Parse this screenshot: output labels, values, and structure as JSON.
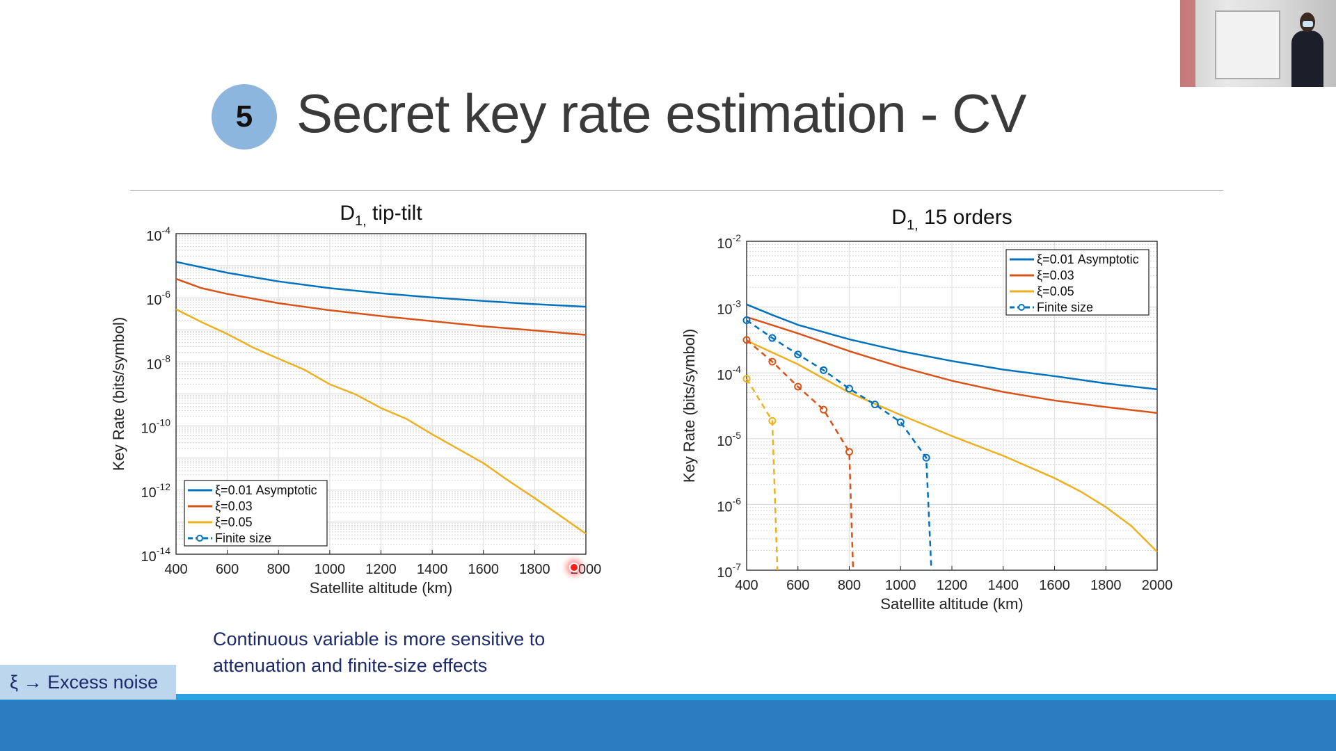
{
  "slide": {
    "number": "5",
    "title": "Secret key rate estimation - CV",
    "note_lines": [
      "Continuous variable is more sensitive to",
      "attenuation and finite-size effects"
    ],
    "xi_label": "ξ → Excess noise",
    "accent_color": "#2c7cc1",
    "circle_color": "#8db6de"
  },
  "webcam": {
    "icon": "presenter-video-thumbnail"
  },
  "chart_data": [
    {
      "type": "line",
      "title": {
        "main": "D",
        "sub": "1,",
        "rest": " tip-tilt"
      },
      "xlabel": "Satellite altitude (km)",
      "ylabel": "Key Rate (bits/symbol)",
      "xlim": [
        400,
        2000
      ],
      "ylim_log10": [
        -14,
        -4
      ],
      "yscale": "log",
      "grid": true,
      "xticks": [
        "400",
        "600",
        "800",
        "1000",
        "1200",
        "1400",
        "1600",
        "1800",
        "2000"
      ],
      "yticks": [
        {
          "base": "10",
          "exp": "-4"
        },
        {
          "base": "10",
          "exp": "-6"
        },
        {
          "base": "10",
          "exp": "-8"
        },
        {
          "base": "10",
          "exp": "-10"
        },
        {
          "base": "10",
          "exp": "-12"
        },
        {
          "base": "10",
          "exp": "-14"
        }
      ],
      "legend_position": "bottom-left",
      "legend": [
        {
          "label": "ξ=0.01 Asymptotic",
          "color": "#0072bd",
          "style": "solid"
        },
        {
          "label": "ξ=0.03",
          "color": "#d95319",
          "style": "solid"
        },
        {
          "label": "ξ=0.05",
          "color": "#edb120",
          "style": "solid"
        },
        {
          "label": "Finite size",
          "color": "#0072bd",
          "style": "dashed-circle"
        }
      ],
      "series": [
        {
          "color": "#0072bd",
          "style": "solid",
          "x": [
            400,
            600,
            800,
            1000,
            1200,
            1400,
            1600,
            1800,
            2000
          ],
          "log10_y": [
            -4.88,
            -5.22,
            -5.49,
            -5.7,
            -5.86,
            -5.99,
            -6.1,
            -6.2,
            -6.28
          ]
        },
        {
          "color": "#d95319",
          "style": "solid",
          "x": [
            400,
            500,
            600,
            800,
            1000,
            1200,
            1400,
            1600,
            1800,
            2000
          ],
          "log10_y": [
            -5.41,
            -5.7,
            -5.88,
            -6.17,
            -6.39,
            -6.57,
            -6.73,
            -6.89,
            -7.02,
            -7.16
          ]
        },
        {
          "color": "#edb120",
          "style": "solid",
          "x": [
            400,
            500,
            600,
            700,
            800,
            900,
            1000,
            1100,
            1200,
            1300,
            1400,
            1500,
            1600,
            1700,
            1800,
            1900,
            2000
          ],
          "log10_y": [
            -6.36,
            -6.76,
            -7.13,
            -7.55,
            -7.9,
            -8.24,
            -8.7,
            -9.01,
            -9.44,
            -9.78,
            -10.26,
            -10.71,
            -11.16,
            -11.72,
            -12.25,
            -12.8,
            -13.36
          ]
        }
      ]
    },
    {
      "type": "line",
      "title": {
        "main": "D",
        "sub": "1,",
        "rest": " 15 orders"
      },
      "xlabel": "Satellite altitude (km)",
      "ylabel": "Key Rate (bits/symbol)",
      "xlim": [
        400,
        2000
      ],
      "ylim_log10": [
        -7,
        -2
      ],
      "yscale": "log",
      "grid": true,
      "xticks": [
        "400",
        "600",
        "800",
        "1000",
        "1200",
        "1400",
        "1600",
        "1800",
        "2000"
      ],
      "yticks": [
        {
          "base": "10",
          "exp": "-2"
        },
        {
          "base": "10",
          "exp": "-3"
        },
        {
          "base": "10",
          "exp": "-4"
        },
        {
          "base": "10",
          "exp": "-5"
        },
        {
          "base": "10",
          "exp": "-6"
        },
        {
          "base": "10",
          "exp": "-7"
        }
      ],
      "legend_position": "top-right",
      "legend": [
        {
          "label": "ξ=0.01 Asymptotic",
          "color": "#0072bd",
          "style": "solid"
        },
        {
          "label": "ξ=0.03",
          "color": "#d95319",
          "style": "solid"
        },
        {
          "label": "ξ=0.05",
          "color": "#edb120",
          "style": "solid"
        },
        {
          "label": "Finite size",
          "color": "#0072bd",
          "style": "dashed-circle"
        }
      ],
      "series": [
        {
          "color": "#0072bd",
          "style": "solid",
          "x": [
            400,
            500,
            600,
            800,
            1000,
            1200,
            1400,
            1600,
            1800,
            2000
          ],
          "log10_y": [
            -2.96,
            -3.12,
            -3.27,
            -3.49,
            -3.67,
            -3.82,
            -3.95,
            -4.05,
            -4.16,
            -4.25
          ]
        },
        {
          "color": "#d95319",
          "style": "solid",
          "x": [
            400,
            600,
            800,
            1000,
            1200,
            1400,
            1600,
            1800,
            2000
          ],
          "log10_y": [
            -3.15,
            -3.4,
            -3.67,
            -3.91,
            -4.12,
            -4.29,
            -4.42,
            -4.52,
            -4.61
          ]
        },
        {
          "color": "#edb120",
          "style": "solid",
          "x": [
            400,
            600,
            800,
            1000,
            1200,
            1400,
            1600,
            1700,
            1800,
            1900,
            2000
          ],
          "log10_y": [
            -3.51,
            -3.87,
            -4.3,
            -4.64,
            -4.96,
            -5.26,
            -5.6,
            -5.8,
            -6.04,
            -6.33,
            -6.72
          ]
        },
        {
          "color": "#0072bd",
          "style": "dashed-circle",
          "x": [
            400,
            500,
            600,
            700,
            800,
            900,
            1000,
            1100
          ],
          "log10_y": [
            -3.2,
            -3.47,
            -3.72,
            -3.96,
            -4.24,
            -4.48,
            -4.75,
            -5.29
          ],
          "drop_to_x": 1120
        },
        {
          "color": "#d95319",
          "style": "dashed-circle",
          "x": [
            400,
            500,
            600,
            700,
            800
          ],
          "log10_y": [
            -3.5,
            -3.83,
            -4.21,
            -4.56,
            -5.2
          ],
          "drop_to_x": 815
        },
        {
          "color": "#edb120",
          "style": "dashed-circle",
          "x": [
            400,
            500
          ],
          "log10_y": [
            -4.09,
            -4.73
          ],
          "drop_to_x": 520
        }
      ]
    }
  ]
}
